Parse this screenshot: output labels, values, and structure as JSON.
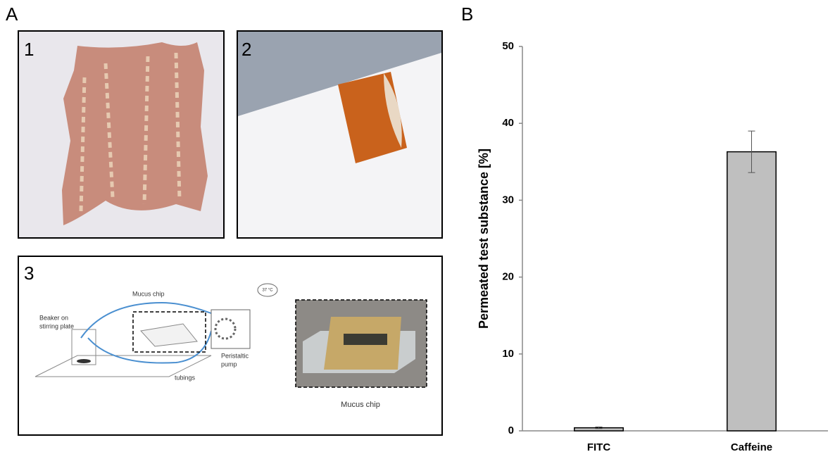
{
  "figure": {
    "panel_a": "A",
    "panel_b": "B",
    "photo_1": "1",
    "photo_2": "2",
    "diagram_3": "3",
    "diagram_labels": {
      "chip": "Mucus chip",
      "temperature": "37 °C",
      "beaker": [
        "Beaker on",
        "stirring plate"
      ],
      "pump": [
        "Peristaltic",
        "pump"
      ],
      "tubings": "tubings",
      "photo_caption": "Mucus chip"
    }
  },
  "chart_data": {
    "type": "bar",
    "ylabel": "Permeated test substance [%]",
    "categories": [
      "FITC",
      "Caffeine"
    ],
    "values": [
      0.4,
      36.3
    ],
    "errors": [
      0.1,
      2.7
    ],
    "color": "#bfbfbf",
    "ylim": [
      0,
      50
    ],
    "yticks": [
      0,
      10,
      20,
      30,
      40,
      50
    ],
    "grid": false
  }
}
